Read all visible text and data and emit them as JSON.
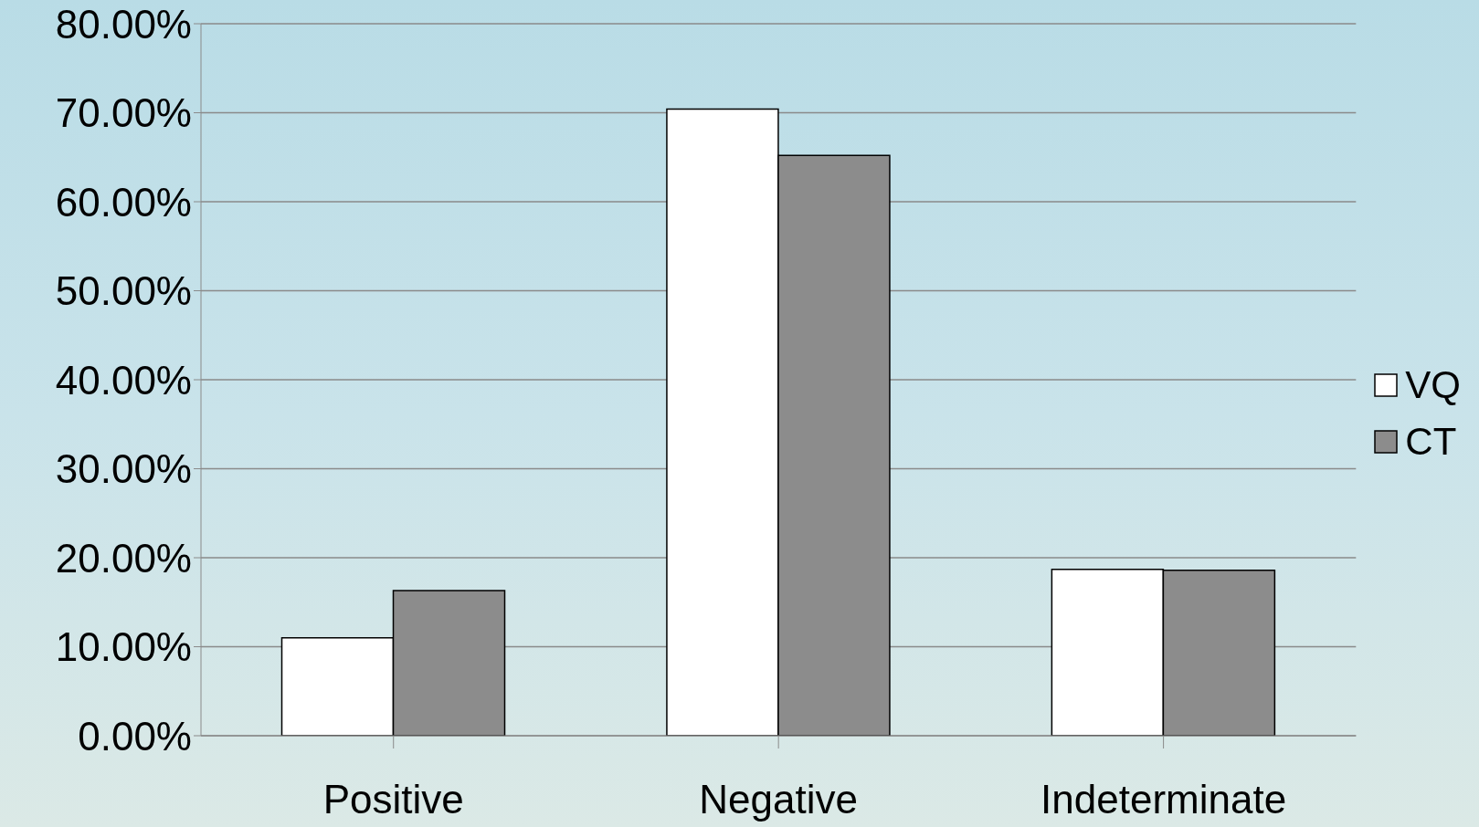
{
  "chart_data": {
    "type": "bar",
    "categories": [
      "Positive",
      "Negative",
      "Indeterminate"
    ],
    "series": [
      {
        "name": "VQ",
        "color": "#ffffff",
        "values": [
          11.0,
          70.4,
          18.7
        ]
      },
      {
        "name": "CT",
        "color": "#8c8c8c",
        "values": [
          16.3,
          65.2,
          18.6
        ]
      }
    ],
    "ylim": [
      0,
      80
    ],
    "yticks": [
      {
        "value": 0,
        "label": "0.00%"
      },
      {
        "value": 10,
        "label": "10.00%"
      },
      {
        "value": 20,
        "label": "20.00%"
      },
      {
        "value": 30,
        "label": "30.00%"
      },
      {
        "value": 40,
        "label": "40.00%"
      },
      {
        "value": 50,
        "label": "50.00%"
      },
      {
        "value": 60,
        "label": "60.00%"
      },
      {
        "value": 70,
        "label": "70.00%"
      },
      {
        "value": 80,
        "label": "80.00%"
      }
    ],
    "grid": "y",
    "legend": "right"
  }
}
